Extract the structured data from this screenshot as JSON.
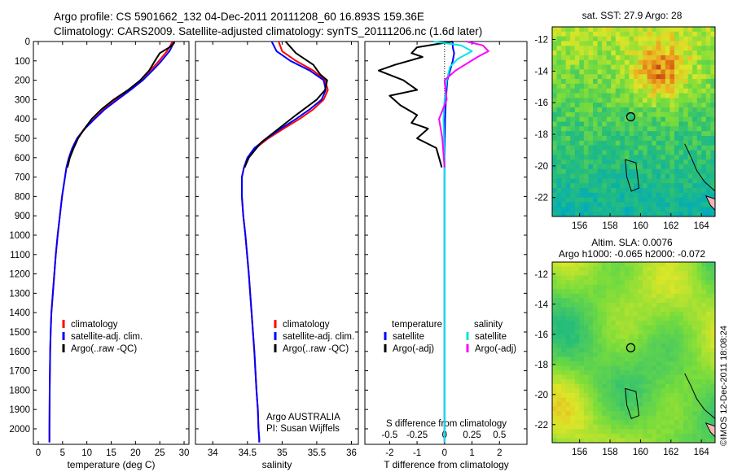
{
  "header": {
    "line1": "Argo profile: CS 5901662_132 04-Dec-2011 20111208_60 16.893S 159.36E",
    "line2": "Climatology: CARS2009. Satellite-adjusted climatology: synTS_20111206.nc (1.6d later)"
  },
  "side_label": "©IMOS 12-Dec-2011 18:08:24",
  "depth_axis": {
    "ticks": [
      0,
      100,
      200,
      300,
      400,
      500,
      600,
      700,
      800,
      900,
      1000,
      1100,
      1200,
      1300,
      1400,
      1500,
      1600,
      1700,
      1800,
      1900,
      2000
    ],
    "range": [
      0,
      2080
    ]
  },
  "colors": {
    "climatology": "#ff0000",
    "satellite": "#0000ff",
    "argo": "#000000",
    "sat_salinity": "#00e5e5",
    "argo_salinity": "#ff00ff"
  },
  "chart_data": [
    {
      "type": "line",
      "xlabel": "temperature (deg C)",
      "xlim": [
        -1,
        31
      ],
      "xticks": [
        0,
        5,
        10,
        15,
        20,
        25,
        30
      ],
      "ylim": [
        0,
        2080
      ],
      "legend": [
        "climatology",
        "satellite-adj. clim.",
        "Argo(..raw -QC)"
      ],
      "series": [
        {
          "name": "climatology",
          "color": "#ff0000",
          "x": [
            27.6,
            27.2,
            26.5,
            25.5,
            24.5,
            23.0,
            21.0,
            18.5,
            16.0,
            13.5,
            11.5,
            9.5,
            8.0,
            7.0,
            6.3,
            5.8,
            5.5,
            4.9,
            4.0,
            3.6,
            3.3,
            3.0,
            2.7,
            2.55,
            2.45,
            2.4,
            2.35,
            2.3,
            2.3
          ],
          "y": [
            0,
            20,
            50,
            80,
            110,
            150,
            200,
            250,
            300,
            350,
            400,
            450,
            500,
            550,
            600,
            650,
            700,
            800,
            1000,
            1100,
            1200,
            1300,
            1400,
            1500,
            1600,
            1700,
            1800,
            2000,
            2070
          ]
        },
        {
          "name": "satellite-adj. clim.",
          "color": "#0000ff",
          "x": [
            27.9,
            27.6,
            27.0,
            26.0,
            25.0,
            23.5,
            21.5,
            19.0,
            16.3,
            13.7,
            11.6,
            9.6,
            8.0,
            7.0,
            6.3,
            5.8,
            5.5,
            4.9,
            4.0,
            3.6,
            3.3,
            3.0,
            2.7,
            2.55,
            2.45,
            2.4,
            2.35,
            2.3,
            2.3
          ],
          "y": [
            0,
            20,
            50,
            80,
            110,
            150,
            200,
            250,
            300,
            350,
            400,
            450,
            500,
            550,
            600,
            650,
            700,
            800,
            1000,
            1100,
            1200,
            1300,
            1400,
            1500,
            1600,
            1700,
            1800,
            2000,
            2070
          ]
        },
        {
          "name": "Argo(..raw -QC)",
          "color": "#000000",
          "x": [
            28.0,
            27.9,
            27.0,
            25.0,
            24.5,
            24.0,
            22.8,
            21.0,
            18.5,
            15.5,
            13.0,
            11.0,
            9.5,
            8.2,
            7.3,
            6.5,
            6.0
          ],
          "y": [
            0,
            10,
            30,
            60,
            80,
            100,
            150,
            200,
            250,
            300,
            350,
            400,
            450,
            500,
            550,
            600,
            650
          ]
        }
      ],
      "annotation": null
    },
    {
      "type": "line",
      "xlabel": "salinity",
      "xlim": [
        33.75,
        36.1
      ],
      "xticks": [
        34,
        34.5,
        35,
        35.5,
        36
      ],
      "xtick_labels": [
        "34",
        "34.5",
        "35",
        "35.5",
        "36"
      ],
      "ylim": [
        0,
        2080
      ],
      "legend": [
        "climatology",
        "satellite-adj. clim.",
        "Argo(..raw -QC)"
      ],
      "annotation_lines": [
        "Argo AUSTRALIA",
        "PI: Susan Wijffels"
      ],
      "series": [
        {
          "name": "climatology",
          "color": "#ff0000",
          "x": [
            34.95,
            35.0,
            35.2,
            35.45,
            35.62,
            35.66,
            35.6,
            35.45,
            35.25,
            35.02,
            34.8,
            34.62,
            34.5,
            34.45,
            34.42,
            34.42,
            34.44,
            34.47,
            34.52,
            34.56,
            34.6,
            34.63,
            34.65,
            34.66,
            34.67,
            34.67
          ],
          "y": [
            0,
            50,
            100,
            150,
            200,
            250,
            300,
            350,
            400,
            450,
            500,
            550,
            600,
            650,
            700,
            800,
            900,
            1000,
            1200,
            1400,
            1600,
            1800,
            1900,
            2000,
            2050,
            2070
          ]
        },
        {
          "name": "satellite-adj. clim.",
          "color": "#0000ff",
          "x": [
            34.85,
            34.92,
            35.12,
            35.4,
            35.6,
            35.63,
            35.57,
            35.4,
            35.2,
            34.98,
            34.78,
            34.6,
            34.5,
            34.45,
            34.42,
            34.42,
            34.44,
            34.47,
            34.52,
            34.56,
            34.6,
            34.63,
            34.65,
            34.66,
            34.67,
            34.67
          ],
          "y": [
            0,
            50,
            100,
            150,
            200,
            250,
            300,
            350,
            400,
            450,
            500,
            550,
            600,
            650,
            700,
            800,
            900,
            1000,
            1200,
            1400,
            1600,
            1800,
            1900,
            2000,
            2050,
            2070
          ]
        },
        {
          "name": "Argo(..raw -QC)",
          "color": "#000000",
          "x": [
            35.05,
            35.2,
            35.45,
            35.55,
            35.65,
            35.62,
            35.5,
            35.2,
            34.95,
            34.7,
            34.52,
            34.46
          ],
          "y": [
            0,
            60,
            120,
            170,
            200,
            250,
            300,
            380,
            450,
            520,
            600,
            650
          ]
        }
      ]
    },
    {
      "type": "line",
      "xlabel": "T difference from climatology",
      "title_bottom": "S difference from climatology",
      "xlim": [
        -2.9,
        3.0
      ],
      "xticks": [
        -2,
        -1,
        0,
        1,
        2
      ],
      "s_ticks": [
        -0.5,
        -0.25,
        0,
        0.25,
        0.5
      ],
      "s_tick_labels": [
        "-0.5",
        "-0.25",
        "0",
        "0.25",
        "0.5"
      ],
      "s_scale": 4,
      "ylim": [
        0,
        2080
      ],
      "legend_temperature": {
        "title": "temperature",
        "entries": [
          "satellite",
          "Argo(-adj)"
        ]
      },
      "legend_salinity": {
        "title": "salinity",
        "entries": [
          "satellite",
          "Argo(-adj)"
        ]
      },
      "series": [
        {
          "name": "satellite",
          "quantity": "temperature",
          "color": "#0000ff",
          "x": [
            0.3,
            0.3,
            0.35,
            0.3,
            0.2,
            0.1,
            0.05,
            0.02,
            0.0,
            0.0,
            0.0,
            0.0
          ],
          "y": [
            0,
            30,
            60,
            100,
            150,
            200,
            300,
            400,
            600,
            800,
            1200,
            2070
          ]
        },
        {
          "name": "Argo(-adj)",
          "quantity": "temperature",
          "color": "#000000",
          "x": [
            0.3,
            -1.0,
            -1.2,
            -0.8,
            -1.8,
            -2.4,
            -1.5,
            -1.0,
            -2.0,
            -1.6,
            -1.0,
            -1.2,
            -0.6,
            -1.0,
            -0.3,
            -0.2,
            -0.1
          ],
          "y": [
            0,
            30,
            60,
            80,
            120,
            150,
            200,
            250,
            280,
            330,
            380,
            420,
            450,
            500,
            550,
            600,
            650
          ]
        },
        {
          "name": "satellite",
          "quantity": "salinity",
          "color": "#00e5e5",
          "x": [
            -0.1,
            0.15,
            0.25,
            0.12,
            0.05,
            0.02,
            0.0,
            -0.01,
            0.0,
            0.0,
            0.0
          ],
          "y": [
            0,
            20,
            50,
            90,
            130,
            200,
            300,
            400,
            600,
            1000,
            2070
          ]
        },
        {
          "name": "Argo(-adj)",
          "quantity": "salinity",
          "color": "#ff00ff",
          "x": [
            0.2,
            0.35,
            0.4,
            0.3,
            0.1,
            0.0,
            0.02,
            -0.05,
            -0.02,
            0.0
          ],
          "y": [
            0,
            20,
            50,
            80,
            150,
            200,
            300,
            400,
            500,
            650
          ]
        }
      ]
    },
    {
      "type": "heatmap",
      "title": "sat. SST: 27.9 Argo: 28",
      "xlim": [
        154.2,
        164.9
      ],
      "ylim": [
        -23.2,
        -11.2
      ],
      "xticks": [
        156,
        158,
        160,
        162,
        164
      ],
      "yticks": [
        -12,
        -14,
        -16,
        -18,
        -20,
        -22
      ],
      "marker": {
        "lon": 159.36,
        "lat": -16.893
      }
    },
    {
      "type": "heatmap",
      "title_lines": [
        "Altim. SLA: 0.0076",
        "Argo h1000: -0.065 h2000: -0.072"
      ],
      "xlim": [
        154.2,
        164.9
      ],
      "ylim": [
        -23.2,
        -11.2
      ],
      "xticks": [
        156,
        158,
        160,
        162,
        164
      ],
      "yticks": [
        -12,
        -14,
        -16,
        -18,
        -20,
        -22
      ],
      "marker": {
        "lon": 159.36,
        "lat": -16.893
      }
    }
  ]
}
